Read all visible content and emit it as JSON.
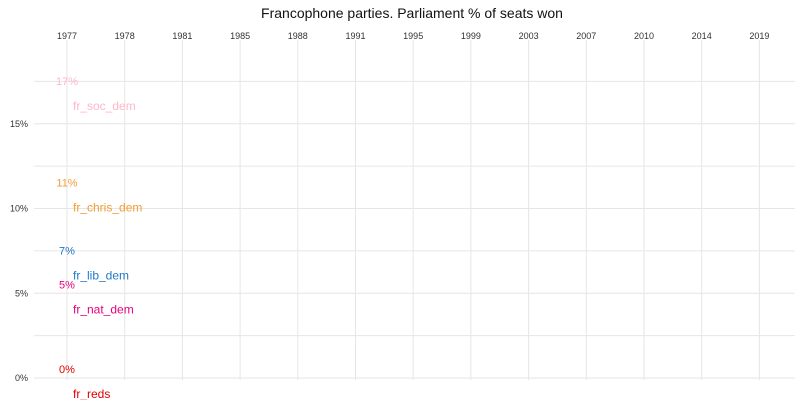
{
  "chart_data": {
    "type": "line",
    "title": "Francophone parties. Parliament % of seats won",
    "x": [
      "1977",
      "1978",
      "1981",
      "1985",
      "1988",
      "1991",
      "1995",
      "1999",
      "2003",
      "2007",
      "2010",
      "2014",
      "2019"
    ],
    "y_ticks": [
      "0%",
      "5%",
      "10%",
      "15%"
    ],
    "ylim": [
      0,
      18
    ],
    "grid": true,
    "series": [
      {
        "name": "fr_soc_dem",
        "color": "#ffb6c8",
        "values": [
          {
            "x": "1977",
            "y": 17
          }
        ],
        "label": "17%"
      },
      {
        "name": "fr_chris_dem",
        "color": "#f39c34",
        "values": [
          {
            "x": "1977",
            "y": 11
          }
        ],
        "label": "11%"
      },
      {
        "name": "fr_lib_dem",
        "color": "#1f78c8",
        "values": [
          {
            "x": "1977",
            "y": 7
          }
        ],
        "label": "7%"
      },
      {
        "name": "fr_nat_dem",
        "color": "#e6007e",
        "values": [
          {
            "x": "1977",
            "y": 5
          }
        ],
        "label": "5%"
      },
      {
        "name": "fr_reds",
        "color": "#e00000",
        "values": [
          {
            "x": "1977",
            "y": 0
          }
        ],
        "label": "0%"
      }
    ]
  }
}
